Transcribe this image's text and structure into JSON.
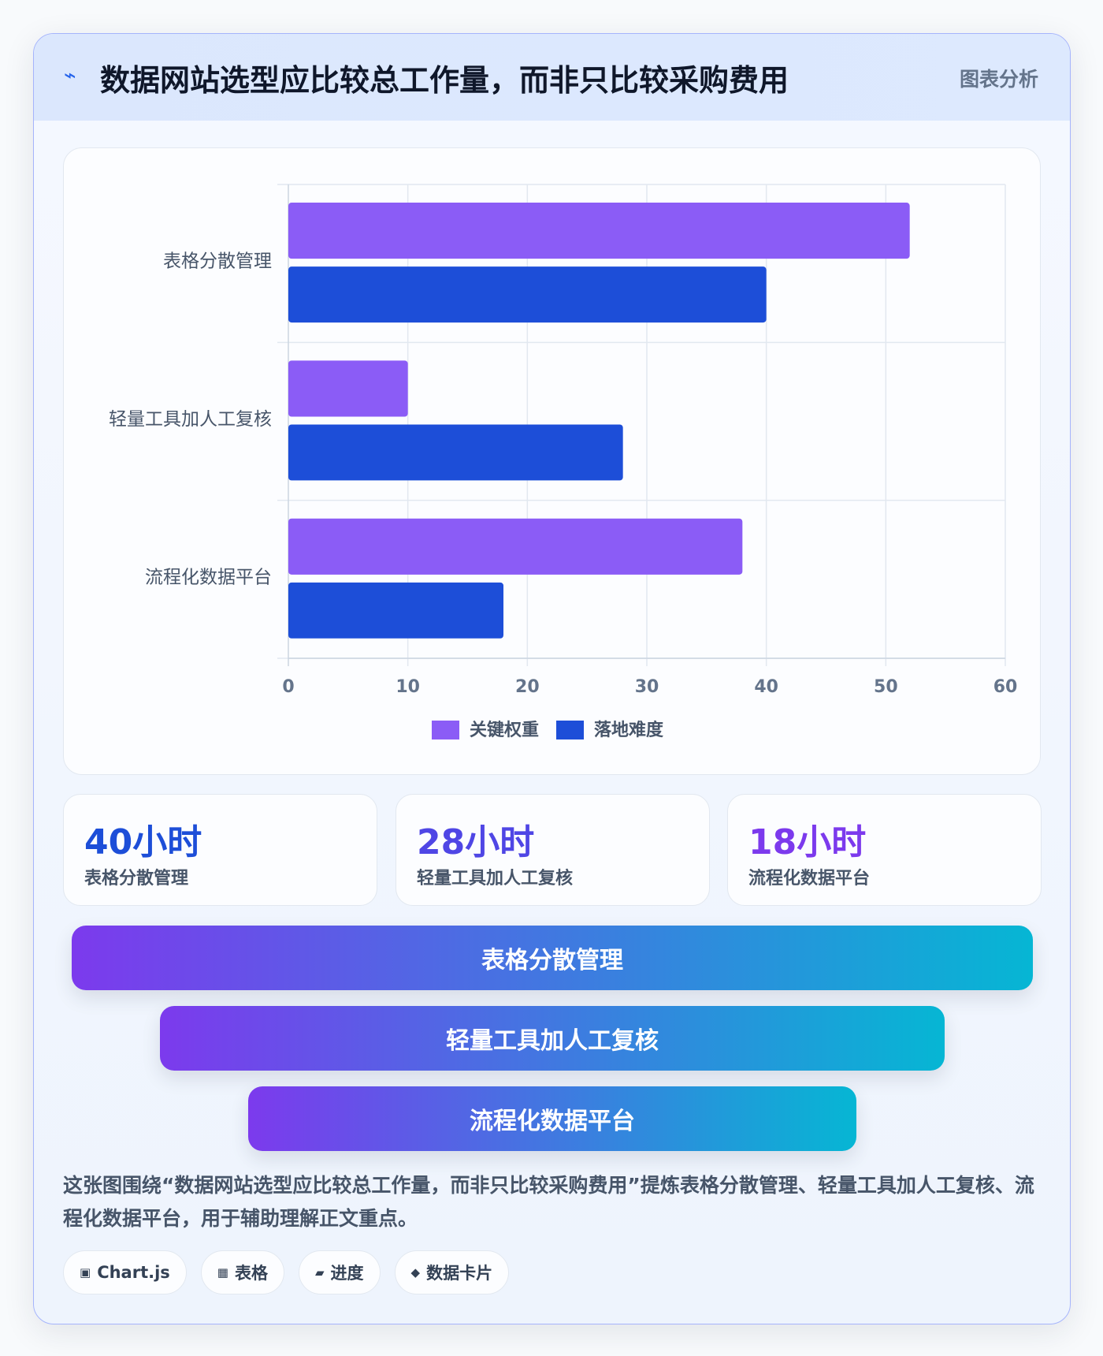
{
  "header": {
    "title": "数据网站选型应比较总工作量，而非只比较采购费用",
    "badge": "图表分析"
  },
  "chart_data": {
    "type": "bar",
    "orientation": "horizontal",
    "categories": [
      "表格分散管理",
      "轻量工具加人工复核",
      "流程化数据平台"
    ],
    "series": [
      {
        "name": "关键权重",
        "color": "#8b5cf6",
        "values": [
          52,
          10,
          38
        ]
      },
      {
        "name": "落地难度",
        "color": "#1d4ed8",
        "values": [
          40,
          28,
          18
        ]
      }
    ],
    "xlim": [
      0,
      60
    ],
    "xticks": [
      0,
      10,
      20,
      30,
      40,
      50,
      60
    ],
    "grid": true,
    "legend": "bottom"
  },
  "stats": [
    {
      "value": "40小时",
      "label": "表格分散管理",
      "color": "#1d4ed8"
    },
    {
      "value": "28小时",
      "label": "轻量工具加人工复核",
      "color": "#4f46e5"
    },
    {
      "value": "18小时",
      "label": "流程化数据平台",
      "color": "#7c3aed"
    }
  ],
  "funnel": [
    "表格分散管理",
    "轻量工具加人工复核",
    "流程化数据平台"
  ],
  "description": "这张图围绕“数据网站选型应比较总工作量，而非只比较采购费用”提炼表格分散管理、轻量工具加人工复核、流程化数据平台，用于辅助理解正文重点。",
  "tags": [
    "Chart.js",
    "表格",
    "进度",
    "数据卡片"
  ]
}
